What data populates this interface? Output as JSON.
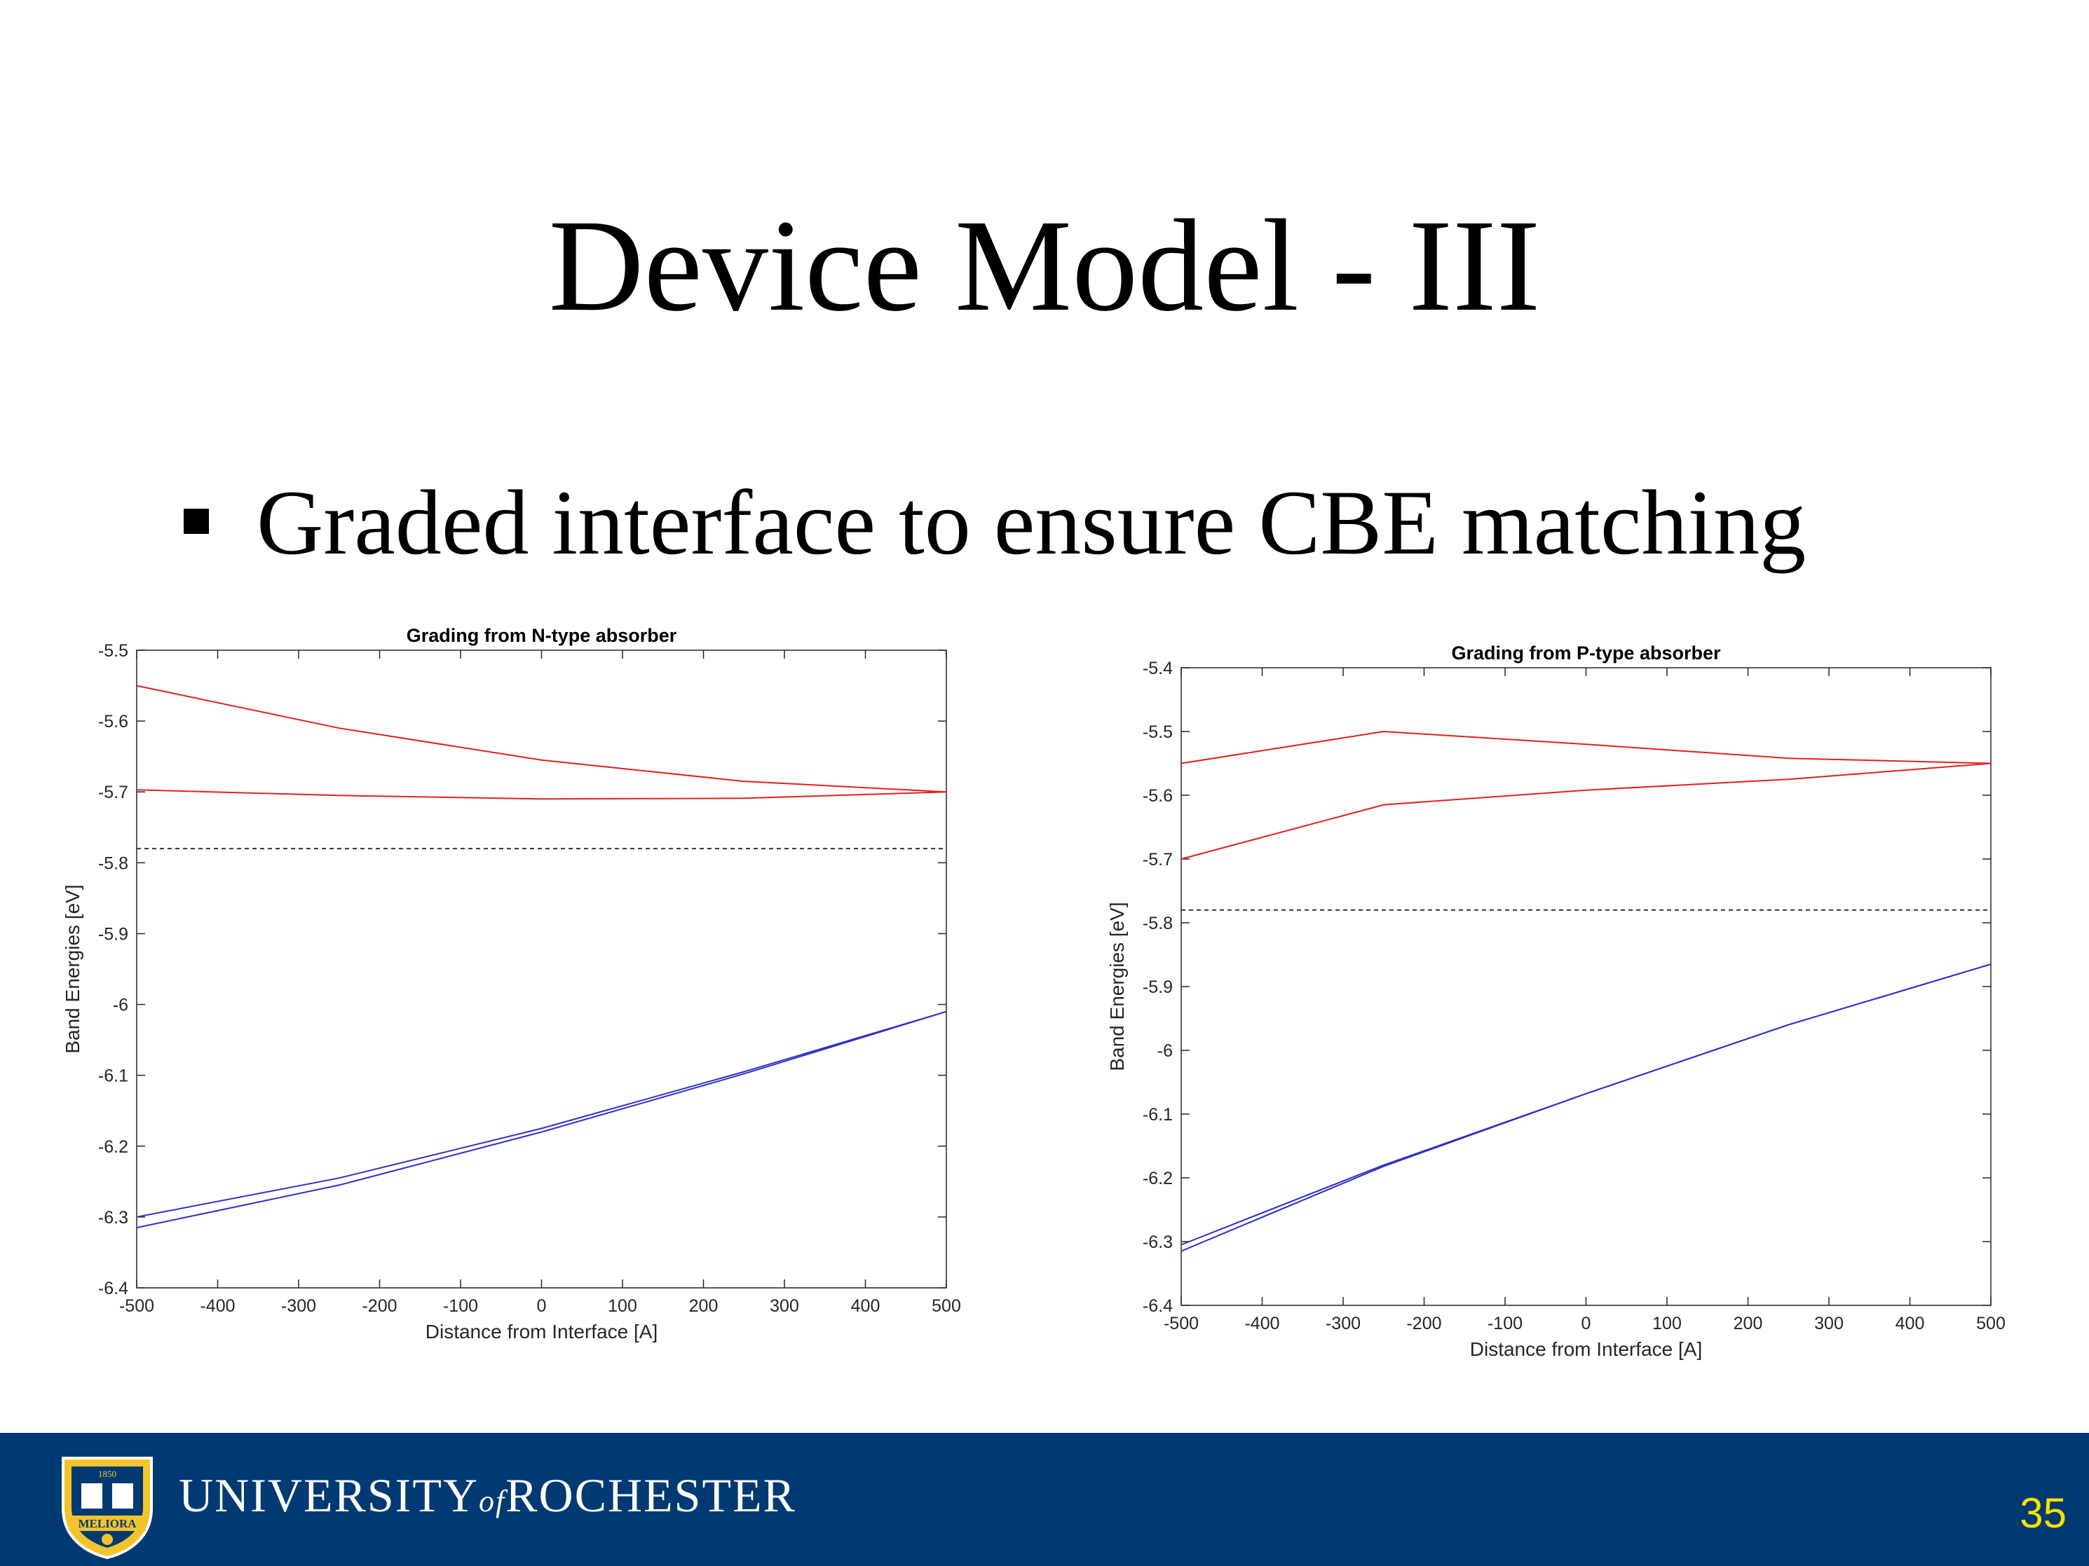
{
  "slide": {
    "title": "Device Model - III",
    "bullet": "Graded interface to ensure CBE matching",
    "page_number": "35"
  },
  "footer": {
    "university_part1": "UNIVERSITY",
    "university_of": "of",
    "university_part2": "ROCHESTER",
    "seal_year": "1850",
    "seal_motto": "MELIORA",
    "background_color": "#013a73",
    "page_number_color": "#f7e100"
  },
  "chart_data": [
    {
      "type": "line",
      "title": "Grading from N-type absorber",
      "xlabel": "Distance from Interface [A]",
      "ylabel": "Band Energies [eV]",
      "xlim": [
        -500,
        500
      ],
      "ylim": [
        -6.4,
        -5.5
      ],
      "xticks": [
        "-500",
        "-400",
        "-300",
        "-200",
        "-100",
        "0",
        "100",
        "200",
        "300",
        "400",
        "500"
      ],
      "yticks": [
        "-5.5",
        "-5.6",
        "-5.7",
        "-5.8",
        "-5.9",
        "-6",
        "-6.1",
        "-6.2",
        "-6.3",
        "-6.4"
      ],
      "grid": false,
      "series": [
        {
          "color": "#e02020",
          "x": [
            -500,
            -250,
            0,
            250,
            500
          ],
          "y": [
            -5.55,
            -5.61,
            -5.655,
            -5.685,
            -5.7
          ]
        },
        {
          "color": "#e02020",
          "x": [
            -500,
            -250,
            0,
            250,
            500
          ],
          "y": [
            -5.697,
            -5.705,
            -5.71,
            -5.709,
            -5.7
          ]
        },
        {
          "color": "#3030c8",
          "x": [
            -500,
            -250,
            0,
            250,
            500
          ],
          "y": [
            -6.3,
            -6.245,
            -6.175,
            -6.095,
            -6.01
          ]
        },
        {
          "color": "#3030c8",
          "x": [
            -500,
            -250,
            0,
            250,
            500
          ],
          "y": [
            -6.315,
            -6.255,
            -6.18,
            -6.098,
            -6.01
          ]
        },
        {
          "color": "#333333",
          "dashed": true,
          "x": [
            -500,
            500
          ],
          "y": [
            -5.78,
            -5.78
          ]
        }
      ]
    },
    {
      "type": "line",
      "title": "Grading from P-type absorber",
      "xlabel": "Distance from Interface [A]",
      "ylabel": "Band Energies [eV]",
      "xlim": [
        -500,
        500
      ],
      "ylim": [
        -6.4,
        -5.4
      ],
      "xticks": [
        "-500",
        "-400",
        "-300",
        "-200",
        "-100",
        "0",
        "100",
        "200",
        "300",
        "400",
        "500"
      ],
      "yticks": [
        "-5.4",
        "-5.5",
        "-5.6",
        "-5.7",
        "-5.8",
        "-5.9",
        "-6",
        "-6.1",
        "-6.2",
        "-6.3",
        "-6.4"
      ],
      "grid": false,
      "series": [
        {
          "color": "#e02020",
          "x": [
            -500,
            -250,
            0,
            250,
            500
          ],
          "y": [
            -5.55,
            -5.5,
            -5.52,
            -5.542,
            -5.55
          ]
        },
        {
          "color": "#e02020",
          "x": [
            -500,
            -250,
            0,
            250,
            500
          ],
          "y": [
            -5.7,
            -5.615,
            -5.592,
            -5.575,
            -5.55
          ]
        },
        {
          "color": "#3030c8",
          "x": [
            -500,
            -250,
            0,
            250,
            500
          ],
          "y": [
            -6.305,
            -6.18,
            -6.068,
            -5.96,
            -5.865
          ]
        },
        {
          "color": "#3030c8",
          "x": [
            -500,
            -250,
            0,
            250,
            500
          ],
          "y": [
            -6.315,
            -6.182,
            -6.068,
            -5.96,
            -5.865
          ]
        },
        {
          "color": "#333333",
          "dashed": true,
          "x": [
            -500,
            500
          ],
          "y": [
            -5.78,
            -5.78
          ]
        }
      ]
    }
  ]
}
